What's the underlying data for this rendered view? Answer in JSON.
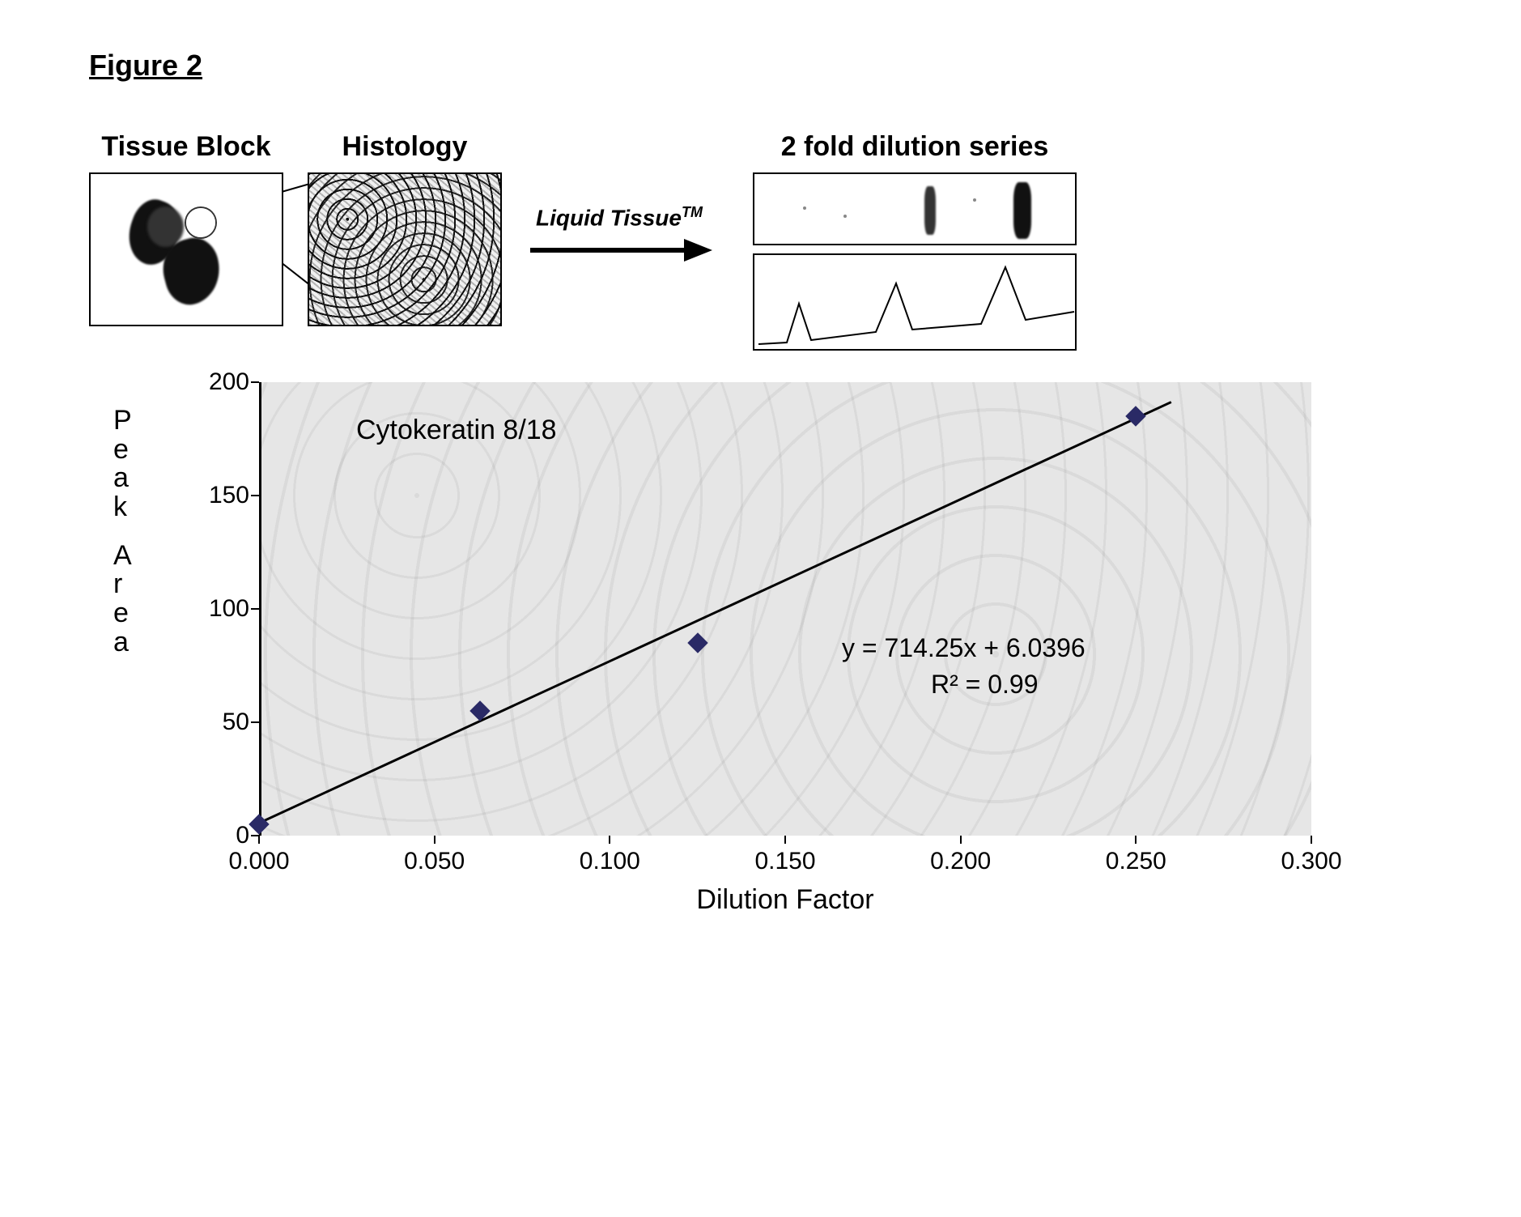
{
  "figure_title": "Figure 2",
  "panels": {
    "tissue_label": "Tissue Block",
    "histology_label": "Histology",
    "dilution_label": "2 fold dilution series",
    "arrow_label_main": "Liquid Tissue",
    "arrow_label_sup": "TM"
  },
  "chart": {
    "type": "scatter-linear-fit",
    "title_in_plot": "Cytokeratin 8/18",
    "fit_eq": "y = 714.25x + 6.0396",
    "fit_r2": "R² = 0.99",
    "xlabel": "Dilution Factor",
    "ylabel_letters": [
      "P",
      "e",
      "a",
      "k",
      "",
      "A",
      "r",
      "e",
      "a"
    ],
    "xlim": [
      0.0,
      0.3
    ],
    "ylim": [
      0,
      200
    ],
    "xticks": [
      0.0,
      0.05,
      0.1,
      0.15,
      0.2,
      0.25,
      0.3
    ],
    "xtick_labels": [
      "0.000",
      "0.050",
      "0.100",
      "0.150",
      "0.200",
      "0.250",
      "0.300"
    ],
    "yticks": [
      0,
      50,
      100,
      150,
      200
    ],
    "plot_bg": "#e6e6e6",
    "marker_color": "#2a2a66",
    "line_color": "#000000",
    "data_points": [
      {
        "x": 0.0,
        "y": 5
      },
      {
        "x": 0.063,
        "y": 55
      },
      {
        "x": 0.125,
        "y": 85
      },
      {
        "x": 0.25,
        "y": 185
      }
    ],
    "fit_line": {
      "x0": 0.0,
      "y0": 6.04,
      "x1": 0.26,
      "y1": 191.7
    }
  }
}
